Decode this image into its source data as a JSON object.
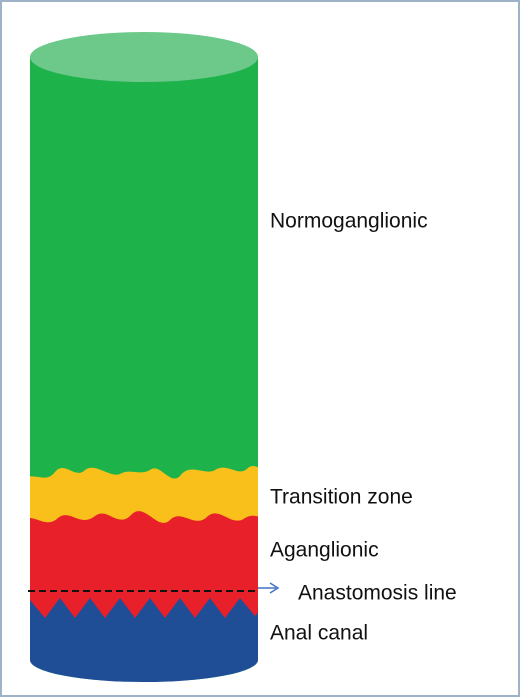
{
  "zones": [
    {
      "label": "Normoganglionic"
    },
    {
      "label": "Transition zone"
    },
    {
      "label": "Aganglionic"
    },
    {
      "label": "Anal canal"
    }
  ],
  "anastomosis": {
    "label": "Anastomosis line"
  }
}
